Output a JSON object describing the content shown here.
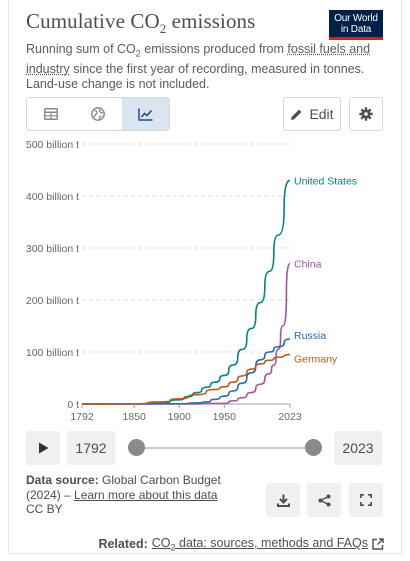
{
  "header": {
    "title_main": "Cumulative CO",
    "title_sub": "2",
    "title_rest": " emissions",
    "logo_line1": "Our World",
    "logo_line2": "in Data",
    "subtitle_p1": "Running sum of CO",
    "subtitle_sub": "2",
    "subtitle_p2": " emissions produced from ",
    "subtitle_link": "fossil fuels and industry",
    "subtitle_p3": " since the first year of recording, measured in tonnes. Land-use change is not included."
  },
  "toolbar": {
    "tabs": [
      {
        "icon": "table-icon",
        "active": false
      },
      {
        "icon": "globe-icon",
        "active": false
      },
      {
        "icon": "line-chart-icon",
        "active": true
      }
    ],
    "edit_label": "Edit",
    "settings_icon": "gear-icon"
  },
  "chart_data": {
    "type": "line",
    "ylim": [
      0,
      500
    ],
    "y_ticks": [
      0,
      100,
      200,
      300,
      400,
      500
    ],
    "y_tick_labels": [
      "0 t",
      "100 billion t",
      "200 billion t",
      "300 billion t",
      "400 billion t",
      "500 billion t"
    ],
    "xlim": [
      1792,
      2023
    ],
    "x_ticks": [
      1792,
      1850,
      1900,
      1950,
      2023
    ],
    "x_tick_labels": [
      "1792",
      "1850",
      "1900",
      "1950",
      "2023"
    ],
    "grid": "horizontal dashed",
    "series": [
      {
        "name": "United States",
        "color": "#00847e",
        "x": [
          1792,
          1850,
          1880,
          1900,
          1910,
          1920,
          1930,
          1940,
          1950,
          1960,
          1970,
          1980,
          1990,
          2000,
          2010,
          2023
        ],
        "y": [
          0,
          0.2,
          2,
          8,
          14,
          22,
          32,
          42,
          55,
          75,
          105,
          145,
          195,
          255,
          325,
          430
        ]
      },
      {
        "name": "China",
        "color": "#a2559c",
        "x": [
          1792,
          1900,
          1950,
          1960,
          1970,
          1980,
          1990,
          2000,
          2005,
          2010,
          2015,
          2023
        ],
        "y": [
          0,
          0.1,
          1,
          6,
          12,
          22,
          38,
          58,
          75,
          105,
          150,
          270
        ]
      },
      {
        "name": "Russia",
        "color": "#286bbb",
        "x": [
          1792,
          1900,
          1920,
          1930,
          1940,
          1950,
          1960,
          1970,
          1980,
          1990,
          2000,
          2010,
          2023
        ],
        "y": [
          0,
          0.5,
          2,
          4,
          9,
          15,
          25,
          40,
          60,
          85,
          100,
          110,
          125
        ]
      },
      {
        "name": "Germany",
        "color": "#be5915",
        "x": [
          1792,
          1850,
          1880,
          1900,
          1920,
          1940,
          1950,
          1960,
          1970,
          1980,
          1990,
          2000,
          2010,
          2023
        ],
        "y": [
          0,
          0.5,
          4,
          10,
          18,
          28,
          33,
          42,
          54,
          67,
          77,
          84,
          90,
          95
        ]
      }
    ]
  },
  "timeline": {
    "play_icon": "play-icon",
    "start_label": "1792",
    "end_label": "2023",
    "start_fraction": 0,
    "end_fraction": 1
  },
  "footer": {
    "source_label": "Data source:",
    "source_text": " Global Carbon Budget (2024) – ",
    "source_link": "Learn more about this data",
    "license": "CC BY",
    "related_label": "Related:",
    "related_link_p1": "CO",
    "related_link_sub": "2",
    "related_link_p2": " data: sources, methods and FAQs"
  }
}
